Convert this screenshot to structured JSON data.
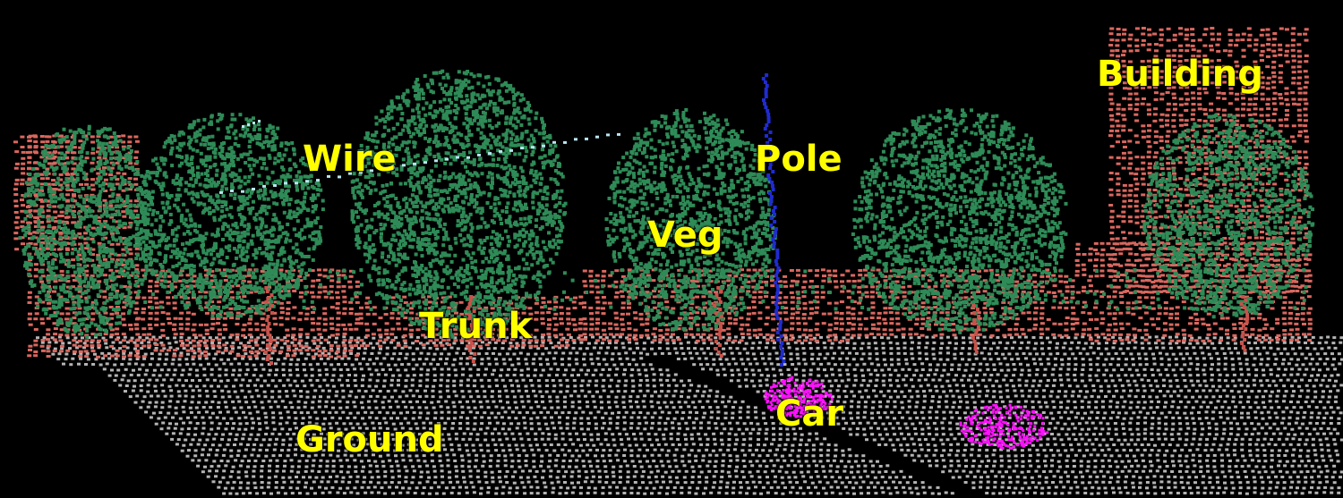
{
  "labels": {
    "wire": "Wire",
    "pole": "Pole",
    "veg": "Veg",
    "trunk": "Trunk",
    "building": "Building",
    "car": "Car",
    "ground": "Ground"
  },
  "colors": {
    "background": "#000000",
    "label_text": "#ffff00",
    "ground": "#b4b4b4",
    "vegetation": "#2e8b57",
    "building": "#d9675f",
    "trunk": "#c8524a",
    "pole": "#1f2bd0",
    "wire": "#b8e6f0",
    "car": "#ff10ff"
  }
}
